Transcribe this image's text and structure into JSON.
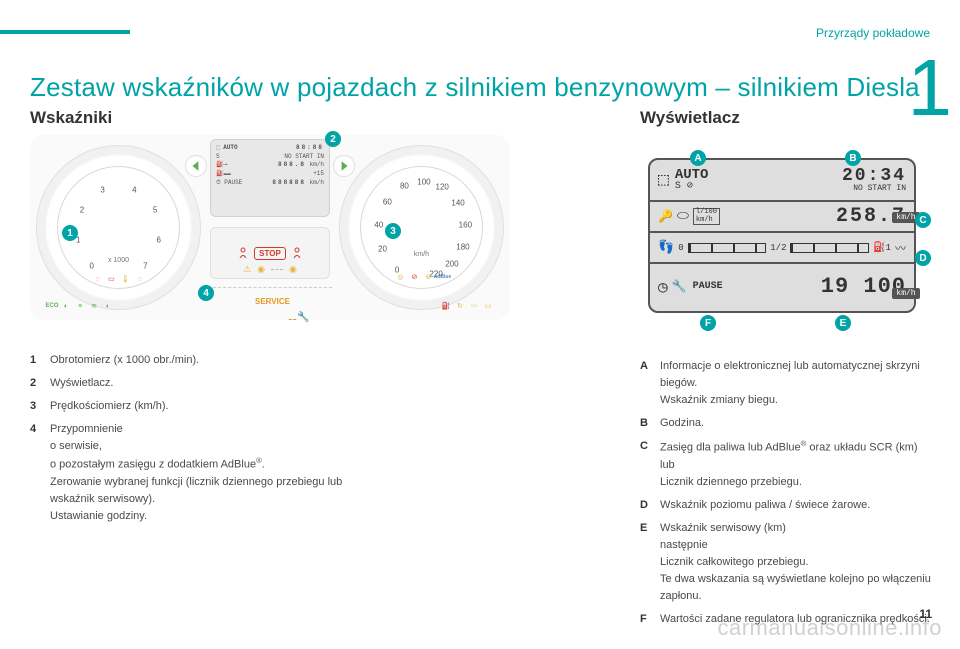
{
  "header": {
    "section_label": "Przyrządy pokładowe",
    "chapter_digit": "1",
    "page_number": "11"
  },
  "title": "Zestaw wskaźników w pojazdach z silnikiem benzynowym – silnikiem Diesla",
  "subtitle_left": "Wskaźniki",
  "subtitle_right": "Wyświetlacz",
  "watermark": "carmanualsonline.info",
  "gauges": {
    "tach": {
      "label_top": "x 1000",
      "numbers": [
        "0",
        "1",
        "2",
        "3",
        "4",
        "5",
        "6",
        "7"
      ],
      "indicator_colors": [
        "#5fae53",
        "#d23b2a",
        "#e6b43c",
        "#d23b2a",
        "#e6b43c"
      ],
      "eco_text": "ECO"
    },
    "speedo": {
      "label_bottom": "km/h",
      "numbers": [
        "0",
        "20",
        "40",
        "60",
        "80",
        "100",
        "120",
        "140",
        "160",
        "180",
        "200",
        "220"
      ],
      "indicator_colors": [
        "#e6b43c",
        "#d23b2a",
        "#e6b43c",
        "#5fae53",
        "#e6b43c",
        "#e6b43c"
      ],
      "adblue_text": "AdBlue"
    },
    "center_screen": {
      "r1_left": "AUTO",
      "r1_right": "88:88",
      "r2_left": "S",
      "r2_right": "NO START IN",
      "r3_right": "888.8",
      "r3_unit": "km/h",
      "r4_right": "+15",
      "r5_left": "PAUSE",
      "r5_right": "888888",
      "r5_unit": "km/h"
    },
    "stop_label": "STOP",
    "service_label": "SERVICE"
  },
  "display": {
    "r1_left": "AUTO",
    "r1_right": "20:34",
    "r1_sub": "NO START IN",
    "r1_s": "S",
    "r2_icon_label": "l/100",
    "r2_icon_unit": "km/h",
    "r2_value": "258.7",
    "r2_unit": "km/h",
    "r3_left": "0",
    "r3_mid": "1/2",
    "r3_right": "1",
    "r4_label": "PAUSE",
    "r4_value": "19 100",
    "r4_unit": "km/h"
  },
  "callouts_num": {
    "c1": "1",
    "c2": "2",
    "c3": "3",
    "c4": "4"
  },
  "callouts_let": {
    "A": "A",
    "B": "B",
    "C": "C",
    "D": "D",
    "E": "E",
    "F": "F"
  },
  "defs_left": [
    {
      "k": "1",
      "v": "Obrotomierz (x 1000 obr./min)."
    },
    {
      "k": "2",
      "v": "Wyświetlacz."
    },
    {
      "k": "3",
      "v": "Prędkościomierz (km/h)."
    },
    {
      "k": "4",
      "v": "Przypomnienie\no serwisie,\no pozostałym zasięgu z dodatkiem AdBlue®.\nZerowanie wybranej funkcji (licznik dziennego przebiegu lub wskaźnik serwisowy).\nUstawianie godziny."
    }
  ],
  "defs_right": [
    {
      "k": "A",
      "v": "Informacje o elektronicznej lub automatycznej skrzyni biegów.\nWskaźnik zmiany biegu."
    },
    {
      "k": "B",
      "v": "Godzina."
    },
    {
      "k": "C",
      "v": "Zasięg dla paliwa lub AdBlue® oraz układu SCR (km)\nlub\nLicznik dziennego przebiegu."
    },
    {
      "k": "D",
      "v": "Wskaźnik poziomu paliwa / świece żarowe."
    },
    {
      "k": "E",
      "v": "Wskaźnik serwisowy (km)\nnastępnie\nLicznik całkowitego przebiegu.\nTe dwa wskazania są wyświetlane kolejno po włączeniu zapłonu."
    },
    {
      "k": "F",
      "v": "Wartości zadane regulatora lub ogranicznika prędkości."
    }
  ],
  "colors": {
    "accent": "#00a3a6",
    "orange": "#e69a24",
    "red": "#d23b2a",
    "green": "#5fae53"
  }
}
